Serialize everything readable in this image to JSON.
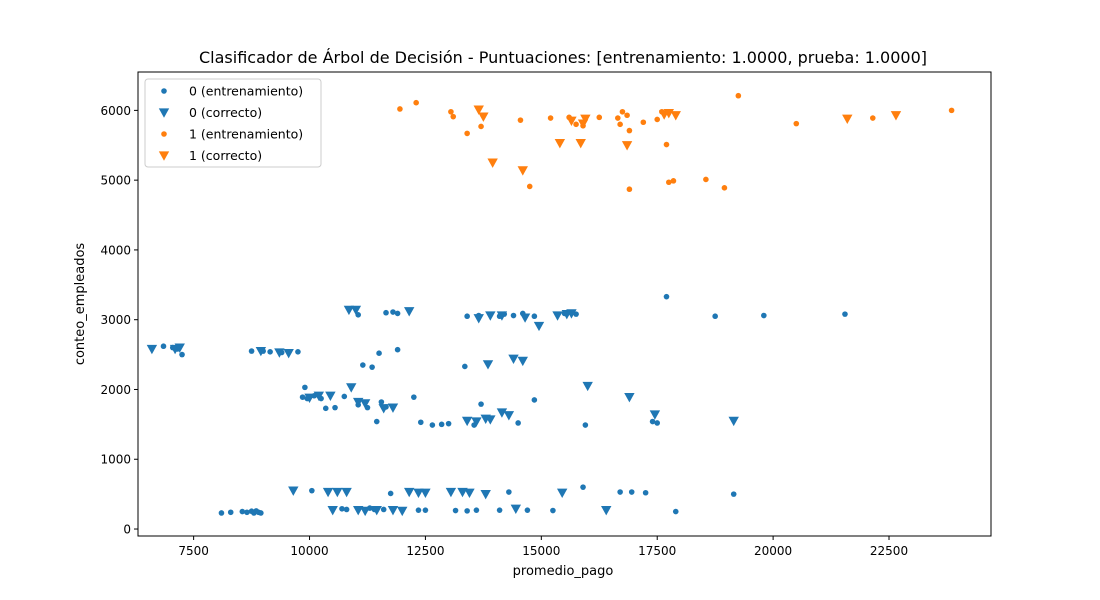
{
  "chart_data": {
    "type": "scatter",
    "title": "Clasificador de Árbol de Decisión - Puntuaciones: [entrenamiento: 1.0000, prueba: 1.0000]",
    "xlabel": "promedio_pago",
    "ylabel": "conteo_empleados",
    "xlim": [
      6300,
      24700
    ],
    "ylim": [
      -100,
      6550
    ],
    "xticks": [
      7500,
      10000,
      12500,
      15000,
      17500,
      20000,
      22500
    ],
    "yticks": [
      0,
      1000,
      2000,
      3000,
      4000,
      5000,
      6000
    ],
    "grid": false,
    "legend_position": "top-left",
    "colors": {
      "class0": "#1f77b4",
      "class1": "#ff7f0e"
    },
    "series": [
      {
        "name": "0 (entrenamiento)",
        "marker": "dot",
        "color": "#1f77b4",
        "points": [
          [
            8100,
            230
          ],
          [
            8300,
            240
          ],
          [
            8550,
            250
          ],
          [
            8650,
            240
          ],
          [
            8750,
            255
          ],
          [
            8800,
            230
          ],
          [
            8850,
            260
          ],
          [
            8900,
            240
          ],
          [
            8950,
            230
          ],
          [
            10050,
            550
          ],
          [
            10700,
            290
          ],
          [
            10800,
            280
          ],
          [
            11300,
            300
          ],
          [
            11400,
            280
          ],
          [
            11600,
            280
          ],
          [
            11750,
            510
          ],
          [
            12350,
            270
          ],
          [
            12500,
            270
          ],
          [
            13150,
            265
          ],
          [
            13400,
            260
          ],
          [
            13600,
            270
          ],
          [
            14100,
            270
          ],
          [
            14300,
            530
          ],
          [
            14700,
            270
          ],
          [
            15250,
            265
          ],
          [
            15900,
            600
          ],
          [
            16700,
            530
          ],
          [
            16950,
            530
          ],
          [
            17250,
            520
          ],
          [
            17900,
            250
          ],
          [
            19150,
            500
          ],
          [
            6850,
            2620
          ],
          [
            7050,
            2600
          ],
          [
            7150,
            2580
          ],
          [
            7250,
            2500
          ],
          [
            8750,
            2550
          ],
          [
            9000,
            2550
          ],
          [
            9150,
            2540
          ],
          [
            9400,
            2530
          ],
          [
            9750,
            2540
          ],
          [
            9900,
            2030
          ],
          [
            9850,
            1890
          ],
          [
            9950,
            1870
          ],
          [
            10100,
            1910
          ],
          [
            10250,
            1870
          ],
          [
            10350,
            1730
          ],
          [
            10550,
            1740
          ],
          [
            10750,
            1900
          ],
          [
            11050,
            1780
          ],
          [
            11250,
            1740
          ],
          [
            11450,
            1540
          ],
          [
            11550,
            1820
          ],
          [
            11650,
            1750
          ],
          [
            11150,
            2350
          ],
          [
            11350,
            2320
          ],
          [
            11500,
            2520
          ],
          [
            11900,
            2570
          ],
          [
            12250,
            1890
          ],
          [
            12400,
            1530
          ],
          [
            12650,
            1490
          ],
          [
            12850,
            1500
          ],
          [
            13000,
            1510
          ],
          [
            13350,
            2330
          ],
          [
            13550,
            1490
          ],
          [
            13700,
            1790
          ],
          [
            13800,
            1590
          ],
          [
            14500,
            1520
          ],
          [
            14850,
            1850
          ],
          [
            15950,
            1490
          ],
          [
            17400,
            1540
          ],
          [
            17500,
            1520
          ],
          [
            11050,
            3070
          ],
          [
            11650,
            3100
          ],
          [
            11800,
            3110
          ],
          [
            11900,
            3090
          ],
          [
            13400,
            3050
          ],
          [
            13650,
            3060
          ],
          [
            14100,
            3050
          ],
          [
            14200,
            3080
          ],
          [
            14400,
            3060
          ],
          [
            14600,
            3090
          ],
          [
            14850,
            3050
          ],
          [
            15500,
            3090
          ],
          [
            15750,
            3080
          ],
          [
            17700,
            3330
          ],
          [
            18750,
            3050
          ],
          [
            19800,
            3060
          ],
          [
            21550,
            3080
          ]
        ]
      },
      {
        "name": "0 (correcto)",
        "marker": "triangle-down",
        "color": "#1f77b4",
        "points": [
          [
            6600,
            2580
          ],
          [
            7100,
            2580
          ],
          [
            7200,
            2600
          ],
          [
            8950,
            2550
          ],
          [
            9350,
            2530
          ],
          [
            9550,
            2520
          ],
          [
            10850,
            3140
          ],
          [
            11000,
            3140
          ],
          [
            12150,
            3120
          ],
          [
            13650,
            3020
          ],
          [
            13900,
            3060
          ],
          [
            14150,
            3060
          ],
          [
            14650,
            3030
          ],
          [
            14950,
            2910
          ],
          [
            15350,
            3060
          ],
          [
            15550,
            3080
          ],
          [
            15650,
            3090
          ],
          [
            13850,
            2360
          ],
          [
            14400,
            2440
          ],
          [
            14600,
            2410
          ],
          [
            10000,
            1880
          ],
          [
            10200,
            1910
          ],
          [
            10450,
            1910
          ],
          [
            10900,
            2030
          ],
          [
            11050,
            1820
          ],
          [
            11200,
            1800
          ],
          [
            11600,
            1730
          ],
          [
            11800,
            1740
          ],
          [
            13400,
            1550
          ],
          [
            13600,
            1540
          ],
          [
            13800,
            1580
          ],
          [
            13900,
            1570
          ],
          [
            14300,
            1630
          ],
          [
            14150,
            1670
          ],
          [
            16000,
            2050
          ],
          [
            16900,
            1890
          ],
          [
            17450,
            1640
          ],
          [
            19150,
            1550
          ],
          [
            9650,
            550
          ],
          [
            10400,
            530
          ],
          [
            10600,
            530
          ],
          [
            10800,
            530
          ],
          [
            10500,
            270
          ],
          [
            11050,
            270
          ],
          [
            11200,
            260
          ],
          [
            11450,
            270
          ],
          [
            11800,
            270
          ],
          [
            12000,
            260
          ],
          [
            12150,
            530
          ],
          [
            12350,
            520
          ],
          [
            12500,
            520
          ],
          [
            13050,
            530
          ],
          [
            13300,
            530
          ],
          [
            13450,
            520
          ],
          [
            13800,
            500
          ],
          [
            14450,
            290
          ],
          [
            15450,
            520
          ],
          [
            16400,
            270
          ]
        ]
      },
      {
        "name": "1 (entrenamiento)",
        "marker": "dot",
        "color": "#ff7f0e",
        "points": [
          [
            11950,
            6020
          ],
          [
            12300,
            6110
          ],
          [
            13050,
            5980
          ],
          [
            13100,
            5910
          ],
          [
            13400,
            5670
          ],
          [
            13700,
            5770
          ],
          [
            14550,
            5860
          ],
          [
            14750,
            4910
          ],
          [
            15200,
            5890
          ],
          [
            15600,
            5900
          ],
          [
            15750,
            5800
          ],
          [
            15900,
            5780
          ],
          [
            16250,
            5900
          ],
          [
            16650,
            5890
          ],
          [
            16700,
            5800
          ],
          [
            16750,
            5980
          ],
          [
            16850,
            5930
          ],
          [
            16900,
            5710
          ],
          [
            16900,
            4870
          ],
          [
            17200,
            5830
          ],
          [
            17500,
            5870
          ],
          [
            17600,
            5980
          ],
          [
            17700,
            5510
          ],
          [
            17750,
            4970
          ],
          [
            17850,
            4990
          ],
          [
            18550,
            5010
          ],
          [
            18950,
            4890
          ],
          [
            19250,
            6210
          ],
          [
            20500,
            5810
          ],
          [
            22150,
            5890
          ],
          [
            23850,
            6000
          ]
        ]
      },
      {
        "name": "1 (correcto)",
        "marker": "triangle-down",
        "color": "#ff7f0e",
        "points": [
          [
            13650,
            6010
          ],
          [
            13750,
            5910
          ],
          [
            13950,
            5250
          ],
          [
            14600,
            5140
          ],
          [
            15400,
            5530
          ],
          [
            15650,
            5850
          ],
          [
            15850,
            5530
          ],
          [
            15900,
            5810
          ],
          [
            15950,
            5880
          ],
          [
            16850,
            5500
          ],
          [
            17650,
            5940
          ],
          [
            17750,
            5960
          ],
          [
            17900,
            5930
          ],
          [
            21600,
            5880
          ],
          [
            22650,
            5930
          ]
        ]
      }
    ]
  }
}
